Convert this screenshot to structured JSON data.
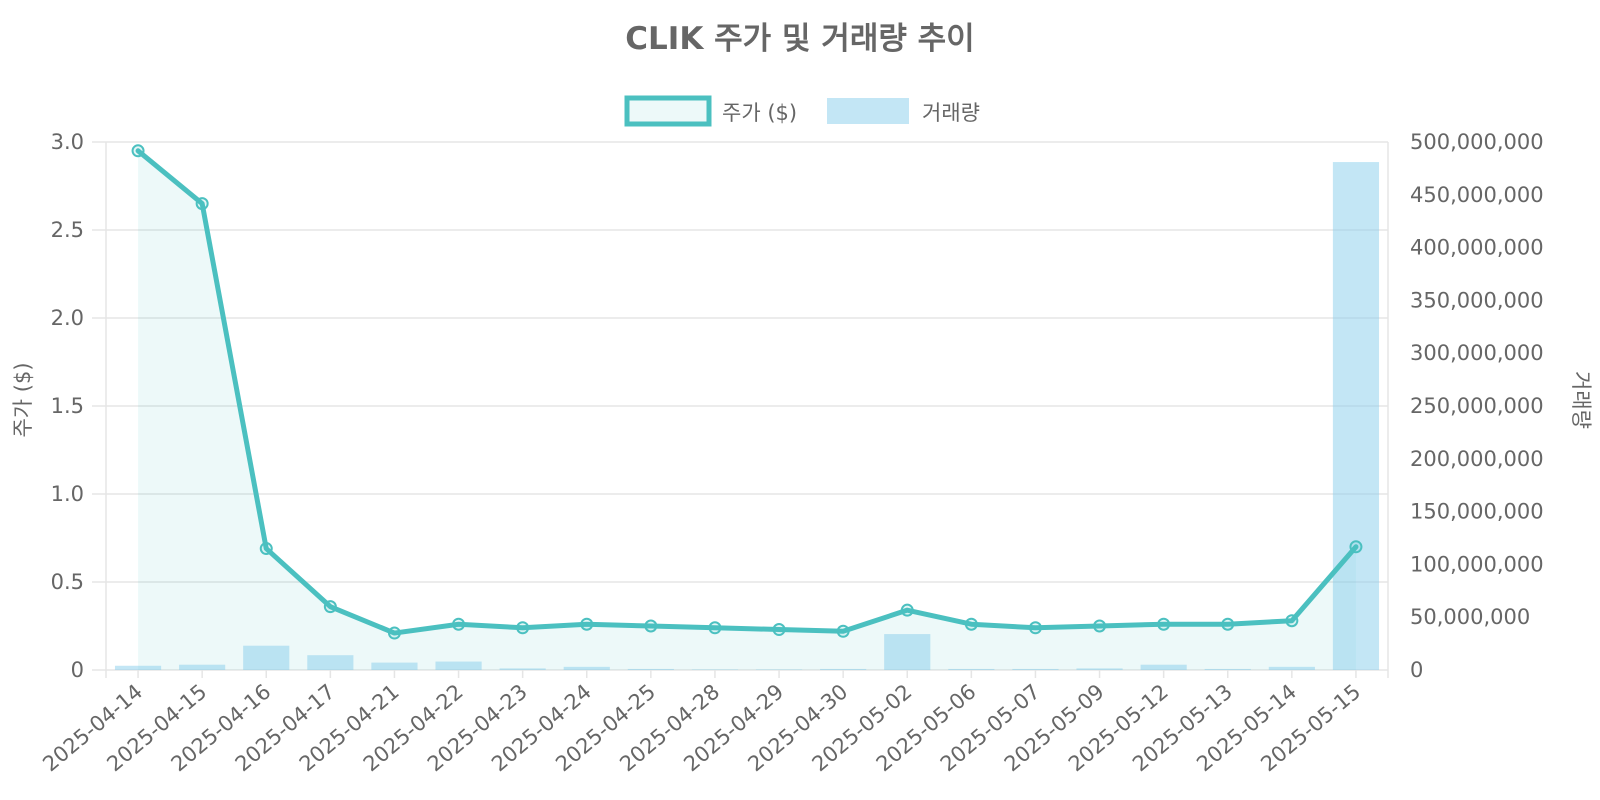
{
  "chart_data": {
    "type": "bar+line",
    "title": "CLIK 주가 및 거래량 추이",
    "categories": [
      "2025-04-14",
      "2025-04-15",
      "2025-04-16",
      "2025-04-17",
      "2025-04-21",
      "2025-04-22",
      "2025-04-23",
      "2025-04-24",
      "2025-04-25",
      "2025-04-28",
      "2025-04-29",
      "2025-04-30",
      "2025-05-02",
      "2025-05-06",
      "2025-05-07",
      "2025-05-09",
      "2025-05-12",
      "2025-05-13",
      "2025-05-14",
      "2025-05-15"
    ],
    "series": [
      {
        "name": "주가 ($)",
        "type": "line",
        "axis": "left",
        "color": "#4bc0c0",
        "fill": "rgba(75,192,192,0.1)",
        "values": [
          2.95,
          2.65,
          0.69,
          0.36,
          0.21,
          0.26,
          0.24,
          0.26,
          0.25,
          0.24,
          0.23,
          0.22,
          0.34,
          0.26,
          0.24,
          0.25,
          0.26,
          0.26,
          0.28,
          0.7
        ]
      },
      {
        "name": "거래량",
        "type": "bar",
        "axis": "right",
        "color": "rgba(135,206,235,0.5)",
        "values": [
          4000000,
          5000000,
          23000000,
          14000000,
          7000000,
          8000000,
          1500000,
          3000000,
          1000000,
          500000,
          500000,
          1000000,
          34000000,
          1000000,
          1000000,
          1500000,
          5000000,
          1000000,
          3000000,
          481000000
        ]
      }
    ],
    "ylabel": "주가 ($)",
    "ylim": [
      0,
      3.0
    ],
    "yticks": [
      0,
      0.5,
      1.0,
      1.5,
      2.0,
      2.5,
      3.0
    ],
    "yticklabels": [
      "0",
      "0.5",
      "1.0",
      "1.5",
      "2.0",
      "2.5",
      "3.0"
    ],
    "y2label": "거래량",
    "y2lim": [
      0,
      500000000
    ],
    "y2ticks": [
      0,
      50000000,
      100000000,
      150000000,
      200000000,
      250000000,
      300000000,
      350000000,
      400000000,
      450000000,
      500000000
    ],
    "y2ticklabels": [
      "0",
      "50,000,000",
      "100,000,000",
      "150,000,000",
      "200,000,000",
      "250,000,000",
      "300,000,000",
      "350,000,000",
      "400,000,000",
      "450,000,000",
      "500,000,000"
    ],
    "grid": true,
    "legend_position": "top-center"
  }
}
